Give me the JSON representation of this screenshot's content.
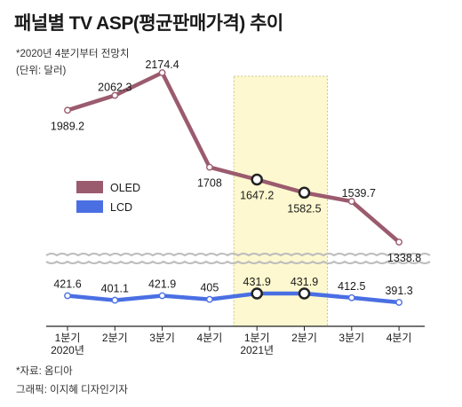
{
  "header": {
    "title": "패널별 TV ASP(평균판매가격) 추이",
    "subtitle": "*2020년 4분기부터 전망치",
    "unit": "(단위: 달러)"
  },
  "footer": {
    "source": "*자료: 옴디아",
    "credit": "그래픽: 이지혜 디자인기자"
  },
  "colors": {
    "oled": "#9b5b6e",
    "lcd": "#4a6fe3",
    "highlight": "#fdf8cf"
  },
  "chart_data": {
    "type": "line",
    "categories": [
      "1분기",
      "2분기",
      "3분기",
      "4분기",
      "1분기",
      "2분기",
      "3분기",
      "4분기"
    ],
    "year_labels": [
      {
        "index": 0,
        "label": "2020년"
      },
      {
        "index": 4,
        "label": "2021년"
      }
    ],
    "highlight_range": [
      4,
      5
    ],
    "axis_break": true,
    "series": [
      {
        "name": "OLED",
        "values": [
          1989.2,
          2062.3,
          2174.4,
          1708,
          1647.2,
          1582.5,
          1539.7,
          1338.8
        ],
        "labels": [
          "1989.2",
          "2062.3",
          "2174.4",
          "1708",
          "1647.2",
          "1582.5",
          "1539.7",
          "1338.8"
        ]
      },
      {
        "name": "LCD",
        "values": [
          421.6,
          401.1,
          421.9,
          405,
          431.9,
          431.9,
          412.5,
          391.3
        ],
        "labels": [
          "421.6",
          "401.1",
          "421.9",
          "405",
          "431.9",
          "431.9",
          "412.5",
          "391.3"
        ]
      }
    ],
    "legend_position": "left-middle",
    "grid": false
  }
}
